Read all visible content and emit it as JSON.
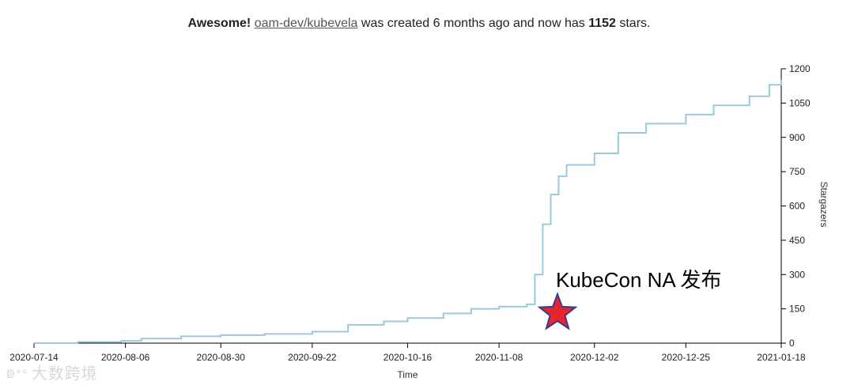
{
  "header": {
    "prefix": "Awesome!",
    "repo_link": "oam-dev/kubevela",
    "middle": " was created 6 months ago and now has ",
    "stars": "1152",
    "suffix": " stars."
  },
  "annotation": {
    "text": "KubeCon NA 发布"
  },
  "watermark": {
    "logo": "ↁ°°",
    "text": "大数跨境"
  },
  "chart_data": {
    "type": "line",
    "title": "",
    "xlabel": "Time",
    "ylabel": "Stargazers",
    "x_tick_labels": [
      "2020-07-14",
      "2020-08-06",
      "2020-08-30",
      "2020-09-22",
      "2020-10-16",
      "2020-11-08",
      "2020-12-02",
      "2020-12-25",
      "2021-01-18"
    ],
    "y_ticks": [
      0,
      150,
      300,
      450,
      600,
      750,
      900,
      1050,
      1200
    ],
    "ylim": [
      0,
      1200
    ],
    "xlim": [
      "2020-07-14",
      "2021-01-18"
    ],
    "y_axis_side": "right",
    "grid": false,
    "legend": "none",
    "line_color": "#9ac9de",
    "series": [
      {
        "x": [
          "2020-07-14",
          "2020-07-25",
          "2020-08-05",
          "2020-08-10",
          "2020-08-20",
          "2020-08-30",
          "2020-09-10",
          "2020-09-22",
          "2020-10-01",
          "2020-10-10",
          "2020-10-16",
          "2020-10-25",
          "2020-11-01",
          "2020-11-08",
          "2020-11-15",
          "2020-11-17",
          "2020-11-19",
          "2020-11-21",
          "2020-11-23",
          "2020-11-25",
          "2020-12-02",
          "2020-12-08",
          "2020-12-15",
          "2020-12-25",
          "2021-01-01",
          "2021-01-10",
          "2021-01-15",
          "2021-01-18"
        ],
        "y": [
          0,
          5,
          10,
          20,
          30,
          35,
          40,
          50,
          80,
          95,
          110,
          130,
          150,
          160,
          170,
          300,
          520,
          650,
          730,
          780,
          830,
          920,
          960,
          1000,
          1040,
          1080,
          1130,
          1152
        ]
      }
    ]
  }
}
